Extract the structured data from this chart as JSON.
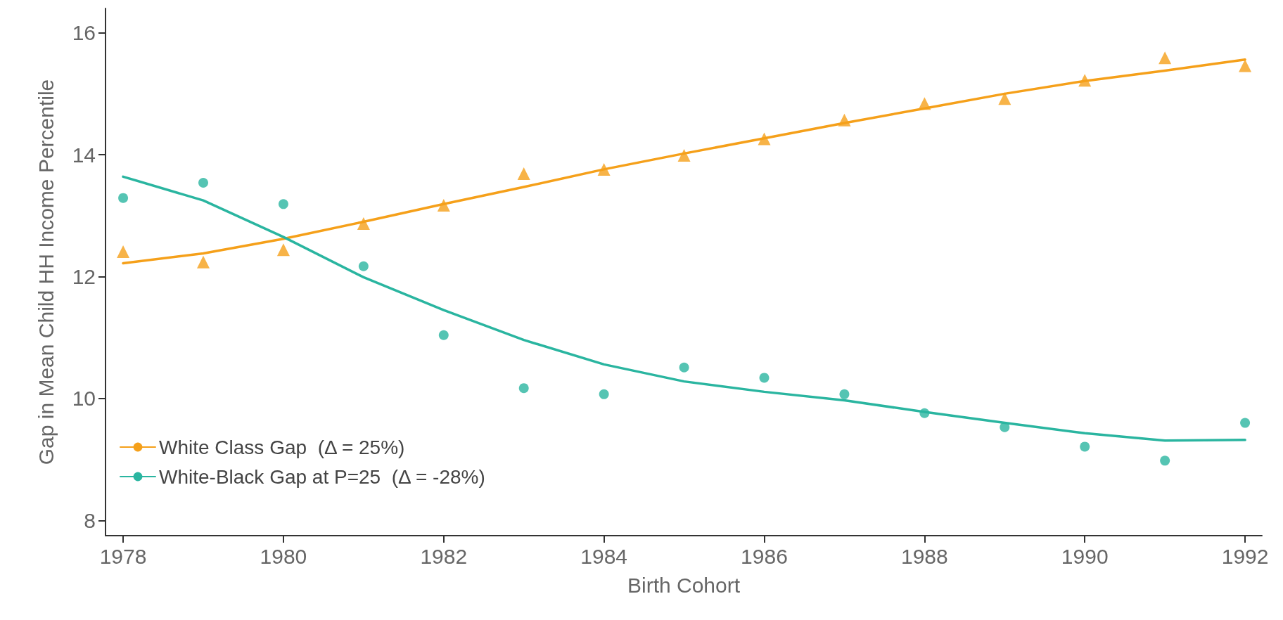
{
  "chart_data": {
    "type": "scatter",
    "xlabel": "Birth Cohort",
    "ylabel": "Gap in Mean Child HH Income Percentile",
    "x": [
      1978,
      1979,
      1980,
      1981,
      1982,
      1983,
      1984,
      1985,
      1986,
      1987,
      1988,
      1989,
      1990,
      1991,
      1992
    ],
    "xlim": [
      1977.78,
      1992.21
    ],
    "xticks": [
      1978,
      1980,
      1982,
      1984,
      1986,
      1988,
      1990,
      1992
    ],
    "ylim": [
      7.75,
      16.4
    ],
    "yticks": [
      8,
      10,
      12,
      14,
      16
    ],
    "grid": false,
    "legend": "bottom left",
    "series": [
      {
        "type": "line",
        "name": "White Class Gap  (Δ = 25%)",
        "color": "#f5a01a",
        "marker": "none",
        "line_style": "solid",
        "values": [
          12.22,
          12.38,
          12.62,
          12.9,
          13.19,
          13.47,
          13.76,
          14.02,
          14.27,
          14.52,
          14.76,
          15.0,
          15.21,
          15.38,
          15.56
        ]
      },
      {
        "type": "line",
        "name": "White-Black Gap at P=25  (Δ = -28%)",
        "color": "#2ab5a0",
        "marker": "none",
        "line_style": "solid",
        "values": [
          13.64,
          13.25,
          12.65,
          11.99,
          11.45,
          10.96,
          10.56,
          10.28,
          10.11,
          9.97,
          9.78,
          9.6,
          9.43,
          9.31,
          9.32
        ]
      },
      {
        "type": "scatter",
        "color": "#f5a01a",
        "marker": "triangle",
        "values": [
          12.41,
          12.24,
          12.44,
          12.87,
          13.17,
          13.69,
          13.76,
          13.99,
          14.26,
          14.57,
          14.84,
          14.92,
          15.22,
          15.59,
          15.46
        ]
      },
      {
        "type": "scatter",
        "color": "#2ab5a0",
        "marker": "circle",
        "values": [
          13.29,
          13.54,
          13.19,
          12.17,
          11.04,
          10.17,
          10.07,
          10.51,
          10.34,
          10.07,
          9.76,
          9.53,
          9.21,
          8.98,
          9.6
        ]
      }
    ]
  }
}
